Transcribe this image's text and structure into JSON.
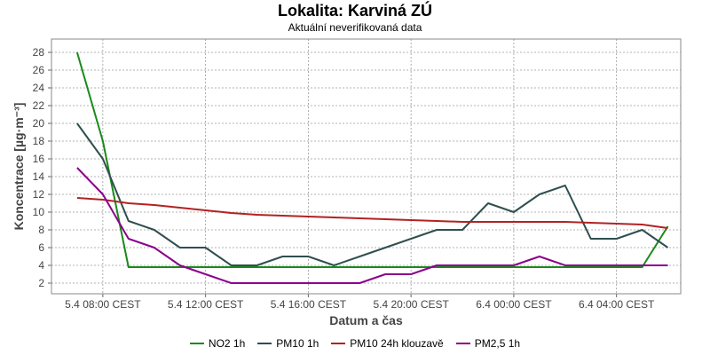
{
  "header": {
    "title": "Lokalita: Karviná ZÚ",
    "subtitle": "Aktuální neverifikovaná data"
  },
  "chart_data": {
    "type": "line",
    "title": "Lokalita: Karviná ZÚ",
    "subtitle": "Aktuální neverifikovaná data",
    "xlabel": "Datum a čas",
    "ylabel": "Koncentrace [µg·m⁻³]",
    "x": [
      7,
      8,
      9,
      10,
      11,
      12,
      13,
      14,
      15,
      16,
      17,
      18,
      19,
      20,
      21,
      22,
      23,
      24,
      25,
      26,
      27,
      28,
      29,
      30
    ],
    "x_ticks": [
      {
        "x": 8,
        "label": "5.4 08:00 CEST"
      },
      {
        "x": 12,
        "label": "5.4 12:00 CEST"
      },
      {
        "x": 16,
        "label": "5.4 16:00 CEST"
      },
      {
        "x": 20,
        "label": "5.4 20:00 CEST"
      },
      {
        "x": 24,
        "label": "6.4 00:00 CEST"
      },
      {
        "x": 28,
        "label": "6.4 04:00 CEST"
      }
    ],
    "xlim": [
      6.0,
      30.5
    ],
    "ylim": [
      0.8,
      29.5
    ],
    "y_ticks": [
      2,
      4,
      6,
      8,
      10,
      12,
      14,
      16,
      18,
      20,
      22,
      24,
      26,
      28
    ],
    "grid": true,
    "legend": "bottom",
    "series": [
      {
        "name": "NO2 1h",
        "color": "#1a8a1a",
        "values": [
          28,
          18,
          3.8,
          3.8,
          3.8,
          3.8,
          3.8,
          3.8,
          3.8,
          3.8,
          3.8,
          3.8,
          3.8,
          3.8,
          3.8,
          3.8,
          3.8,
          3.8,
          3.8,
          3.8,
          3.8,
          3.8,
          3.8,
          8.4
        ]
      },
      {
        "name": "PM10 1h",
        "color": "#2f4f4f",
        "values": [
          20,
          16,
          9,
          8,
          6,
          6,
          4,
          4,
          5,
          5,
          4,
          5,
          6,
          7,
          8,
          8,
          11,
          10,
          12,
          13,
          7,
          7,
          8,
          6
        ]
      },
      {
        "name": "PM10 24h klouzavě",
        "color": "#b22222",
        "values": [
          11.6,
          11.4,
          11.0,
          10.8,
          10.5,
          10.2,
          9.9,
          9.7,
          9.6,
          9.5,
          9.4,
          9.3,
          9.2,
          9.1,
          9.0,
          8.9,
          8.9,
          8.9,
          8.9,
          8.9,
          8.8,
          8.7,
          8.6,
          8.2
        ]
      },
      {
        "name": "PM2,5 1h",
        "color": "#8b008b",
        "values": [
          15,
          12,
          7,
          6,
          4,
          3,
          2,
          2,
          2,
          2,
          2,
          2,
          3,
          3,
          4,
          4,
          4,
          4,
          5,
          4,
          4,
          4,
          4,
          4
        ]
      }
    ]
  }
}
